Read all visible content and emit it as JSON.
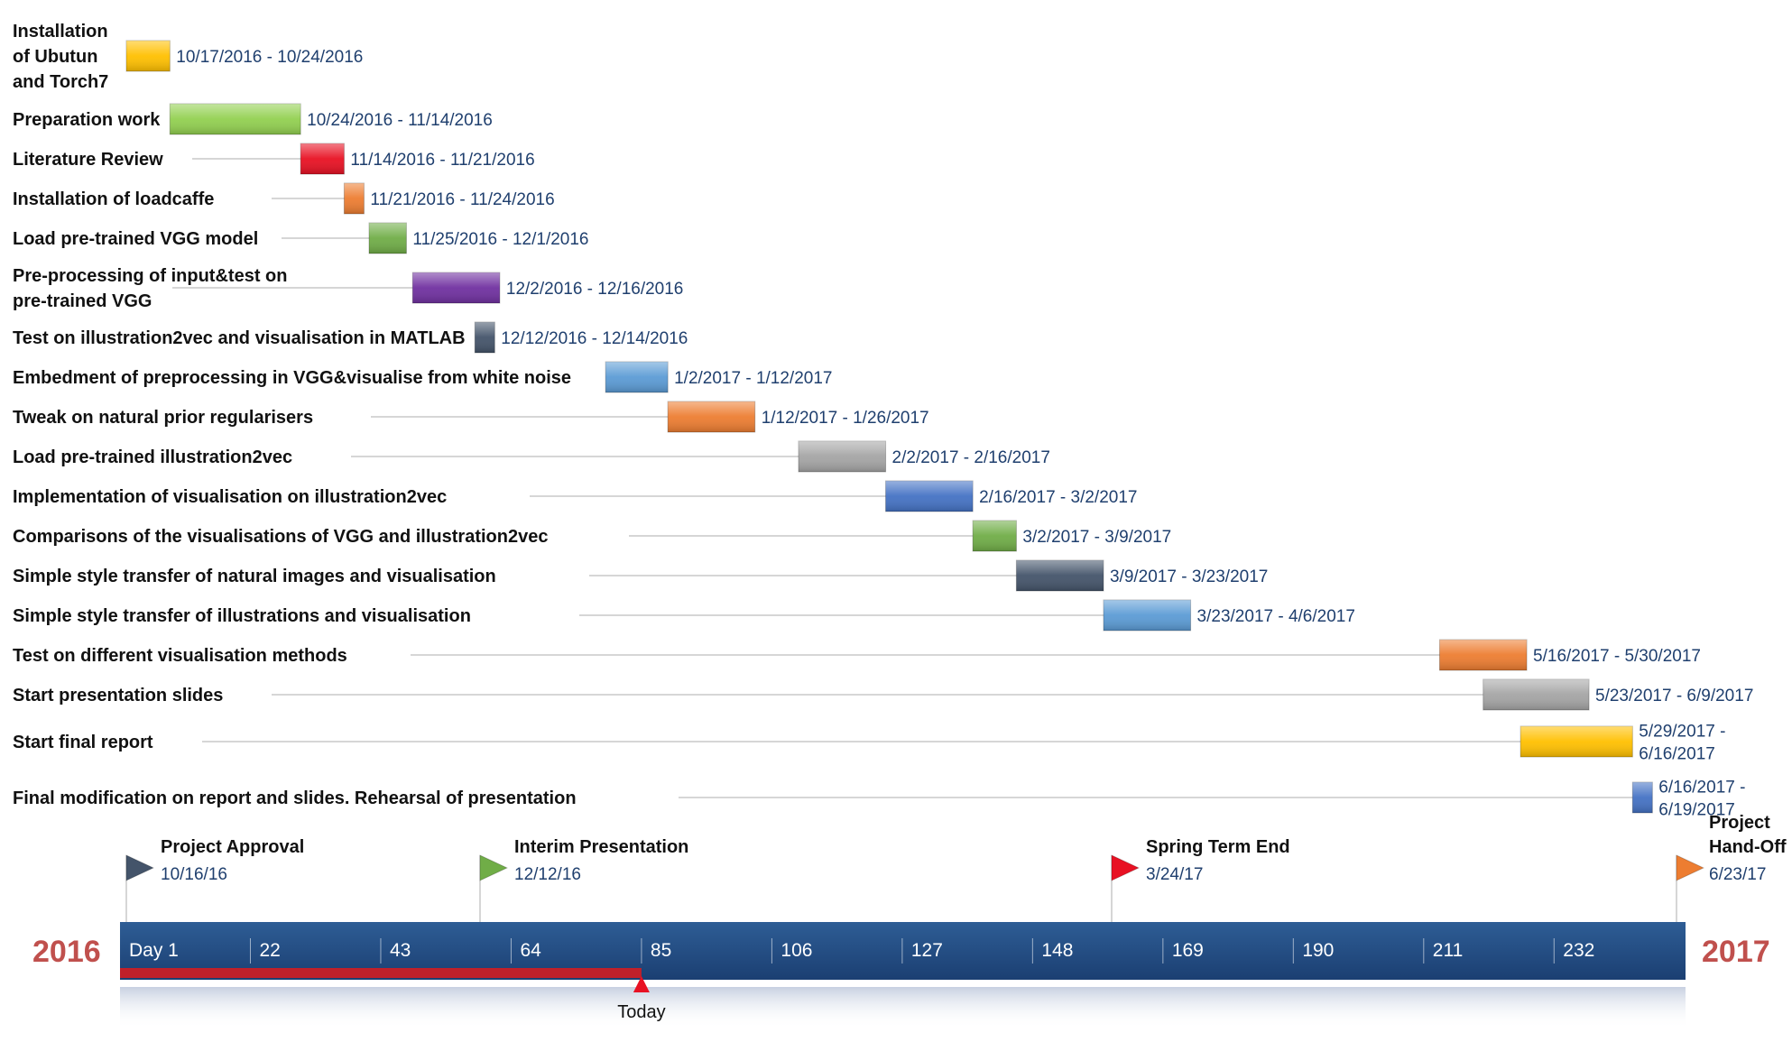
{
  "colors": {
    "yellow": "#ffc000",
    "light-green": "#92d050",
    "red": "#e81123",
    "orange": "#ed7d31",
    "green": "#70ad47",
    "purple": "#7030a0",
    "slate": "#44546a",
    "light-blue": "#5b9bd5",
    "gray": "#a5a5a5",
    "blue": "#4472c4",
    "timeline": "#1f497d",
    "progress": "#c0202a",
    "year": "#c0504d"
  },
  "chart_data": {
    "type": "gantt",
    "tasks": [
      {
        "label_lines": [
          "Installation",
          "of Ubutun",
          "and Torch7"
        ],
        "start": "2016-10-17",
        "end": "2016-10-24",
        "date_lines": [
          "10/17/2016 - 10/24/2016"
        ],
        "color": "yellow"
      },
      {
        "label_lines": [
          "Preparation work"
        ],
        "start": "2016-10-24",
        "end": "2016-11-14",
        "date_lines": [
          "10/24/2016 - 11/14/2016"
        ],
        "color": "light-green"
      },
      {
        "label_lines": [
          "Literature Review"
        ],
        "start": "2016-11-14",
        "end": "2016-11-21",
        "date_lines": [
          "11/14/2016 - 11/21/2016"
        ],
        "color": "red"
      },
      {
        "label_lines": [
          "Installation of loadcaffe"
        ],
        "start": "2016-11-21",
        "end": "2016-11-24",
        "date_lines": [
          "11/21/2016 - 11/24/2016"
        ],
        "color": "orange"
      },
      {
        "label_lines": [
          "Load pre-trained VGG model"
        ],
        "start": "2016-11-25",
        "end": "2016-12-01",
        "date_lines": [
          "11/25/2016 - 12/1/2016"
        ],
        "color": "green"
      },
      {
        "label_lines": [
          "Pre-processing of input&test on",
          "pre-trained VGG"
        ],
        "start": "2016-12-02",
        "end": "2016-12-16",
        "date_lines": [
          "12/2/2016 - 12/16/2016"
        ],
        "color": "purple"
      },
      {
        "label_lines": [
          "Test on illustration2vec and visualisation in MATLAB"
        ],
        "start": "2016-12-12",
        "end": "2016-12-14",
        "date_lines": [
          "12/12/2016 - 12/14/2016"
        ],
        "color": "slate"
      },
      {
        "label_lines": [
          "Embedment of preprocessing in VGG&visualise from white noise"
        ],
        "start": "2017-01-02",
        "end": "2017-01-12",
        "date_lines": [
          "1/2/2017 - 1/12/2017"
        ],
        "color": "light-blue"
      },
      {
        "label_lines": [
          "Tweak on natural prior regularisers"
        ],
        "start": "2017-01-12",
        "end": "2017-01-26",
        "date_lines": [
          "1/12/2017 - 1/26/2017"
        ],
        "color": "orange"
      },
      {
        "label_lines": [
          "Load pre-trained illustration2vec"
        ],
        "start": "2017-02-02",
        "end": "2017-02-16",
        "date_lines": [
          "2/2/2017 - 2/16/2017"
        ],
        "color": "gray"
      },
      {
        "label_lines": [
          "Implementation of visualisation on illustration2vec"
        ],
        "start": "2017-02-16",
        "end": "2017-03-02",
        "date_lines": [
          "2/16/2017 - 3/2/2017"
        ],
        "color": "blue"
      },
      {
        "label_lines": [
          "Comparisons of the visualisations of VGG and illustration2vec"
        ],
        "start": "2017-03-02",
        "end": "2017-03-09",
        "date_lines": [
          "3/2/2017 - 3/9/2017"
        ],
        "color": "green"
      },
      {
        "label_lines": [
          "Simple style transfer of natural images and visualisation"
        ],
        "start": "2017-03-09",
        "end": "2017-03-23",
        "date_lines": [
          "3/9/2017 - 3/23/2017"
        ],
        "color": "slate"
      },
      {
        "label_lines": [
          "Simple style transfer of illustrations and visualisation"
        ],
        "start": "2017-03-23",
        "end": "2017-04-06",
        "date_lines": [
          "3/23/2017 - 4/6/2017"
        ],
        "color": "light-blue"
      },
      {
        "label_lines": [
          "Test on different visualisation methods"
        ],
        "start": "2017-05-16",
        "end": "2017-05-30",
        "date_lines": [
          "5/16/2017 - 5/30/2017"
        ],
        "color": "orange"
      },
      {
        "label_lines": [
          "Start presentation slides"
        ],
        "start": "2017-05-23",
        "end": "2017-06-09",
        "date_lines": [
          "5/23/2017 - 6/9/2017"
        ],
        "color": "gray"
      },
      {
        "label_lines": [
          "Start final report"
        ],
        "start": "2017-05-29",
        "end": "2017-06-16",
        "date_lines": [
          "5/29/2017 -",
          "6/16/2017"
        ],
        "color": "yellow"
      },
      {
        "label_lines": [
          "Final modification on report and slides. Rehearsal of presentation"
        ],
        "start": "2017-06-16",
        "end": "2017-06-19",
        "date_lines": [
          "6/16/2017 -",
          "6/19/2017"
        ],
        "color": "blue"
      }
    ],
    "milestones": [
      {
        "title_lines": [
          "Project Approval"
        ],
        "date": "10/16/16",
        "color": "slate"
      },
      {
        "title_lines": [
          "Interim Presentation"
        ],
        "date": "12/12/16",
        "color": "green"
      },
      {
        "title_lines": [
          "Spring Term End"
        ],
        "date": "3/24/17",
        "color": "red"
      },
      {
        "title_lines": [
          "Project",
          "Hand-Off"
        ],
        "date": "6/23/17",
        "color": "orange"
      }
    ],
    "timeline": {
      "start_year": "2016",
      "end_year": "2017",
      "ticks": [
        "Day 1",
        "22",
        "43",
        "64",
        "85",
        "106",
        "127",
        "148",
        "169",
        "190",
        "211",
        "232"
      ],
      "today_label": "Today",
      "today_day": 85
    }
  }
}
